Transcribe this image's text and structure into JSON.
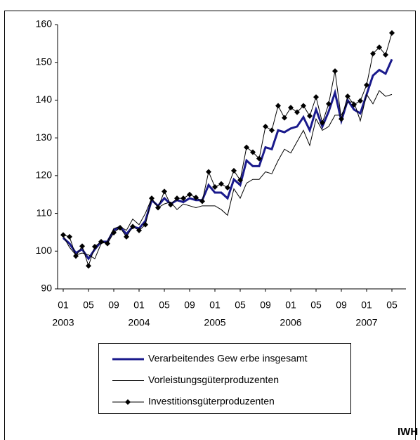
{
  "chart_data": {
    "type": "line",
    "categories": [
      "01",
      null,
      null,
      null,
      "05",
      null,
      null,
      null,
      "09",
      null,
      null,
      null,
      "01",
      null,
      null,
      null,
      "05",
      null,
      null,
      null,
      "09",
      null,
      null,
      null,
      "01",
      null,
      null,
      null,
      "05",
      null,
      null,
      null,
      "09",
      null,
      null,
      null,
      "01",
      null,
      null,
      null,
      "05",
      null,
      null,
      null,
      "09",
      null,
      null,
      null,
      "01",
      null,
      null,
      null,
      "05"
    ],
    "years": [
      "2003",
      "2004",
      "2005",
      "2006",
      "2007"
    ],
    "ylim": [
      90,
      160
    ],
    "yticks": [
      90,
      100,
      110,
      120,
      130,
      140,
      150,
      160
    ],
    "series": [
      {
        "name": "Verarbeitendes Gew erbe insgesamt",
        "color": "#1a1a8c",
        "width": 3,
        "values": [
          103.5,
          102,
          99.5,
          100.5,
          98,
          100.5,
          102.5,
          102.5,
          105.5,
          106.5,
          104.5,
          106.5,
          106,
          108,
          113.5,
          112,
          114,
          112.5,
          113.5,
          113,
          114,
          113.5,
          113.5,
          117.5,
          115.5,
          115.5,
          114,
          119,
          117.5,
          124,
          122.5,
          122.5,
          127.5,
          127,
          132,
          131.5,
          132.5,
          133,
          135.5,
          132,
          137.5,
          133,
          137,
          142,
          134.5,
          140,
          137.5,
          136.5,
          141.5,
          146.5,
          148,
          147,
          150.8
        ]
      },
      {
        "name": "Vorleistungsgüterproduzenten",
        "color": "#000000",
        "width": 1,
        "values": [
          104,
          101,
          99,
          99.5,
          99,
          98,
          102,
          102.5,
          106,
          106.5,
          105.5,
          108.5,
          107,
          110,
          114,
          111.5,
          112.5,
          113,
          111,
          112.5,
          112,
          111.5,
          112,
          112,
          112,
          111,
          109.5,
          116.5,
          114,
          118,
          119,
          119,
          121,
          120.5,
          124,
          127,
          126,
          129,
          132,
          128,
          135,
          132,
          133,
          136,
          136,
          139.5,
          139.5,
          134.5,
          141.5,
          139,
          142.5,
          141,
          141.5
        ]
      },
      {
        "name": "Investitionsgüterproduzenten",
        "color": "#000000",
        "width": 1,
        "marker": "diamond",
        "values": [
          104.3,
          103.8,
          98.7,
          101.3,
          96.1,
          101.2,
          102.5,
          102,
          104.9,
          106.2,
          103.8,
          106.5,
          105.5,
          107,
          114,
          111.5,
          115.8,
          112.3,
          114,
          114,
          115,
          114.2,
          113.2,
          121,
          117,
          117.8,
          116.8,
          121.3,
          118.8,
          127.5,
          126.2,
          124.5,
          133,
          132,
          138.5,
          135.3,
          138,
          136.8,
          138.5,
          135.8,
          140.8,
          134,
          139,
          147.7,
          135,
          141,
          138.8,
          139.8,
          144,
          152.3,
          154,
          152,
          157.8
        ]
      }
    ],
    "source": "IWH"
  }
}
